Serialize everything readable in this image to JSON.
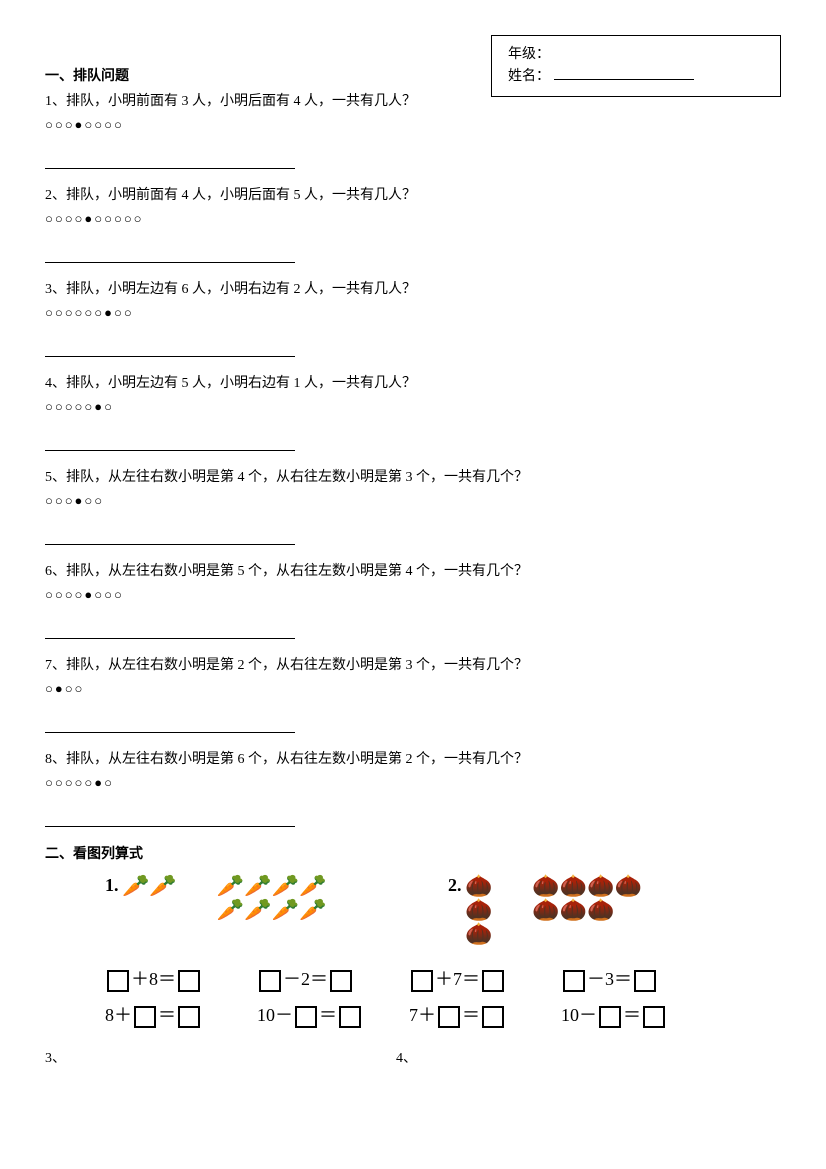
{
  "info_box": {
    "grade_label": "年级：",
    "name_label": "姓名："
  },
  "section1": {
    "title": "一、排队问题",
    "questions": [
      {
        "num": "1",
        "text": "、排队，小明前面有 3 人，小明后面有 4 人，一共有几人？",
        "circles": "○○○●○○○○"
      },
      {
        "num": "2",
        "text": "、排队，小明前面有 4 人，小明后面有 5 人，一共有几人？",
        "circles": "○○○○●○○○○○"
      },
      {
        "num": "3",
        "text": "、排队，小明左边有 6 人，小明右边有 2 人，一共有几人？",
        "circles": "○○○○○○●○○"
      },
      {
        "num": "4",
        "text": "、排队，小明左边有 5 人，小明右边有 1 人，一共有几人？",
        "circles": "○○○○○●○"
      },
      {
        "num": "5",
        "text": "、排队，从左往右数小明是第 4 个，从右往左数小明是第 3 个，一共有几个？",
        "circles": "○○○●○○"
      },
      {
        "num": "6",
        "text": "、排队，从左往右数小明是第 5 个，从右往左数小明是第 4 个，一共有几个？",
        "circles": "○○○○●○○○"
      },
      {
        "num": "7",
        "text": "、排队，从左往右数小明是第 2 个，从右往左数小明是第 3 个，一共有几个？",
        "circles": "○●○○"
      },
      {
        "num": "8",
        "text": "、排队，从左往右数小明是第 6 个，从右往左数小明是第 2 个，一共有几个？",
        "circles": "○○○○○●○"
      }
    ]
  },
  "section2": {
    "title": "二、看图列算式",
    "groups": [
      {
        "label": "1.",
        "type": "carrot",
        "left_count": 2,
        "right_rows": [
          4,
          4
        ]
      },
      {
        "label": "2.",
        "type": "chestnut",
        "left_rows": [
          1,
          1,
          1
        ],
        "right_rows": [
          4,
          3
        ]
      }
    ],
    "equations": [
      {
        "eq1": {
          "pre": "",
          "op": "＋",
          "mid": "8",
          "eq": "＝"
        },
        "eq2": {
          "pre": "8＋",
          "eq": "＝"
        }
      },
      {
        "eq1": {
          "pre": "",
          "op": "－",
          "mid": "2",
          "eq": "＝"
        },
        "eq2": {
          "pre": "10－",
          "eq": "＝"
        }
      },
      {
        "eq1": {
          "pre": "",
          "op": "＋",
          "mid": "7",
          "eq": "＝"
        },
        "eq2": {
          "pre": "7＋",
          "eq": "＝"
        }
      },
      {
        "eq1": {
          "pre": "",
          "op": "－",
          "mid": "3",
          "eq": "＝"
        },
        "eq2": {
          "pre": "10－",
          "eq": "＝"
        }
      }
    ],
    "footer": {
      "left": "3、",
      "right": "4、"
    }
  }
}
